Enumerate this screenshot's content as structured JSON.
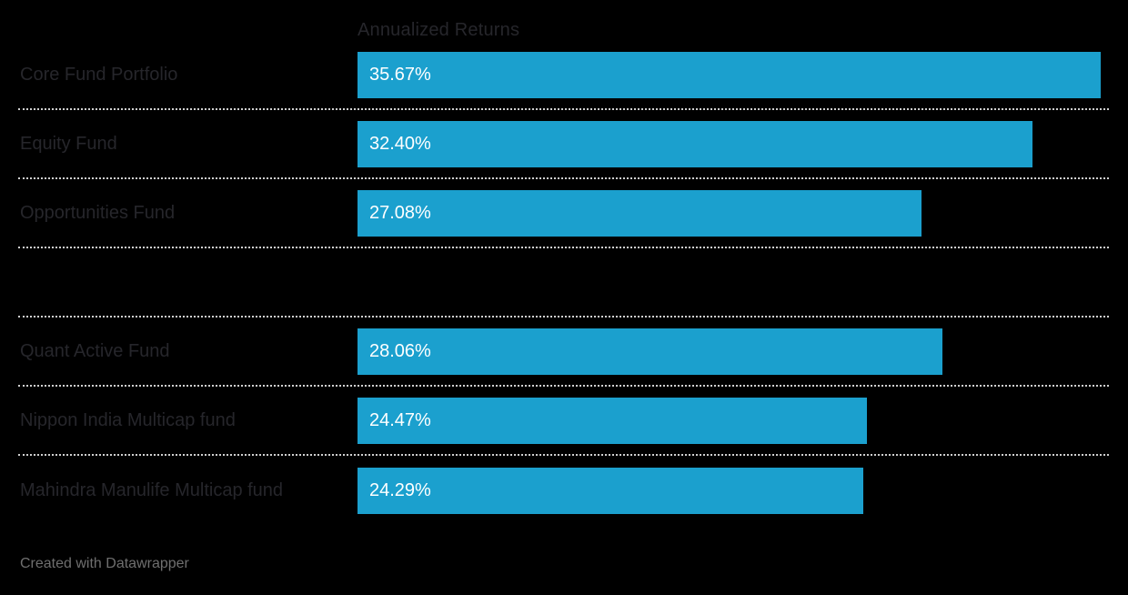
{
  "chart": {
    "column_header": "Annualized Returns",
    "attribution": "Created with Datawrapper"
  },
  "colors": {
    "background": "#000000",
    "bar": "#1BA0CE",
    "label_text": "#26262b",
    "bar_value_text": "#ffffff",
    "separator_dots": "#d0d0d0",
    "attribution_text": "#6f6f6f"
  },
  "chart_data": {
    "type": "bar",
    "orientation": "horizontal",
    "title": "",
    "column_header": "Annualized Returns",
    "categories": [
      "Core Fund Portfolio",
      "Equity Fund",
      "Opportunities Fund",
      "",
      "Quant Active Fund",
      "Nippon India Multicap fund",
      "Mahindra Manulife Multicap fund"
    ],
    "values": [
      35.67,
      32.4,
      27.08,
      null,
      28.06,
      24.47,
      24.29
    ],
    "value_labels": [
      "35.67%",
      "32.40%",
      "27.08%",
      "",
      "28.06%",
      "24.47%",
      "24.29%"
    ],
    "unit": "%",
    "xlim": [
      0,
      36.1
    ],
    "grid": "dotted-row-separators",
    "legend": "none",
    "value_label_position": "inside-bar-left"
  }
}
